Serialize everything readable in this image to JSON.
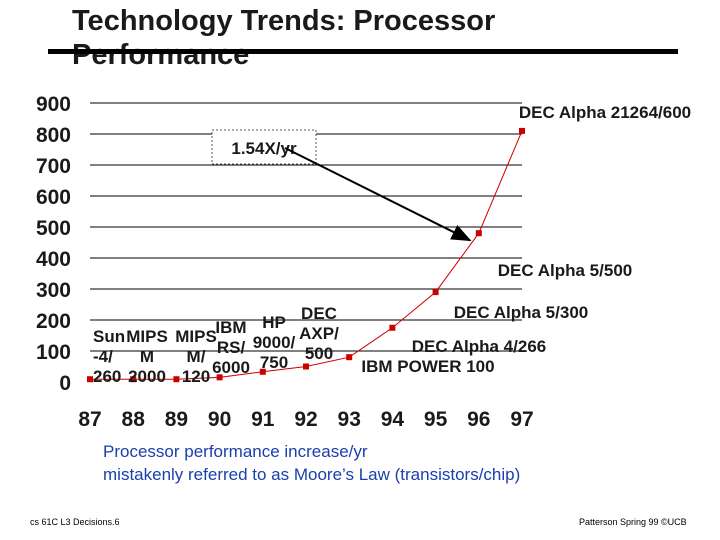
{
  "slide": {
    "title": "Technology Trends: Processor Performance",
    "caption_line1": "Processor performance increase/yr",
    "caption_line2": "mistakenly referred to as Moore’s Law (transistors/chip)",
    "footer_left": "cs 61C L3 Decisions.6",
    "footer_right": "Patterson Spring 99 ©UCB"
  },
  "chart_data": {
    "type": "line",
    "title": "",
    "xlabel": "",
    "ylabel": "",
    "categories": [
      "87",
      "88",
      "89",
      "90",
      "91",
      "92",
      "93",
      "94",
      "95",
      "96",
      "97"
    ],
    "yticks": [
      0,
      100,
      200,
      300,
      400,
      500,
      600,
      700,
      800,
      900
    ],
    "ylim": [
      0,
      900
    ],
    "grid": true,
    "series_color": "#cc0000",
    "points": [
      {
        "x": "87",
        "y": 9,
        "label": [
          "Sun",
          "-4/",
          "260"
        ]
      },
      {
        "x": "88",
        "y": 9,
        "label": [
          "MIPS",
          "M",
          "2000"
        ]
      },
      {
        "x": "89",
        "y": 9,
        "label": [
          "MIPS",
          "M/",
          "120"
        ]
      },
      {
        "x": "90",
        "y": 15,
        "label": [
          "IBM",
          "RS/",
          "6000"
        ]
      },
      {
        "x": "91",
        "y": 33,
        "label": [
          "HP",
          "9000/",
          "750"
        ]
      },
      {
        "x": "92",
        "y": 50,
        "label": [
          "DEC",
          "AXP/",
          "500"
        ]
      },
      {
        "x": "93",
        "y": 80,
        "label": [
          "IBM POWER 100"
        ]
      },
      {
        "x": "94",
        "y": 175,
        "label": [
          "DEC Alpha 4/266"
        ]
      },
      {
        "x": "95",
        "y": 290,
        "label": [
          "DEC Alpha 5/300"
        ]
      },
      {
        "x": "96",
        "y": 480,
        "label": [
          "DEC Alpha 5/500"
        ]
      },
      {
        "x": "97",
        "y": 810,
        "label": [
          "DEC Alpha 21264/600"
        ]
      }
    ],
    "annotation": {
      "text": "1.54X/yr",
      "points_to": "96"
    }
  }
}
